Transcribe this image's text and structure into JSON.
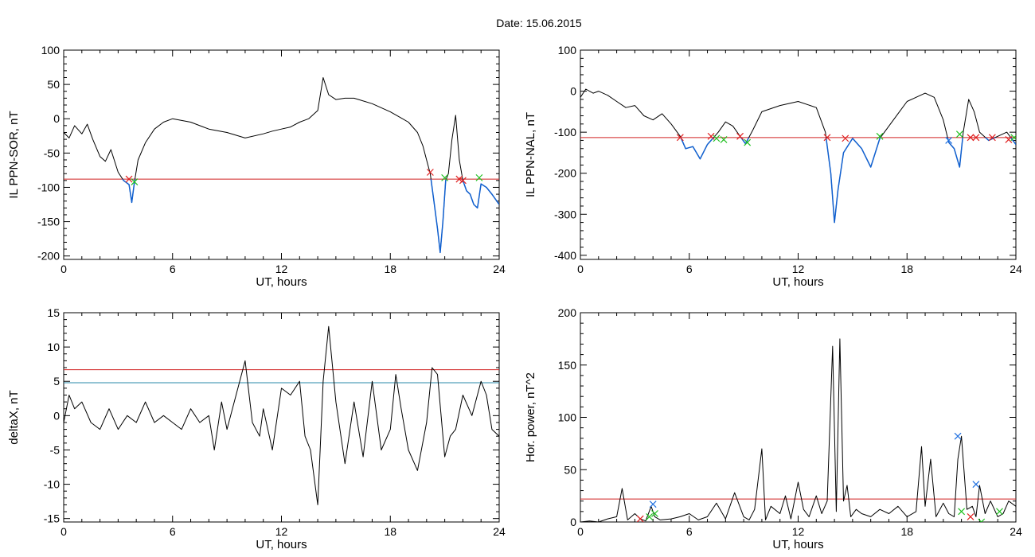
{
  "page": {
    "date_label": "Date:  15.06.2015"
  },
  "colors": {
    "trace": "#000000",
    "threshold_red": "#d02020",
    "threshold_teal": "#2a8aa8",
    "below_blue": "#1060d0",
    "marker_red": "#e02020",
    "marker_green": "#20c020",
    "marker_blue": "#2070e0"
  },
  "chart_data": [
    {
      "id": "sor",
      "type": "line",
      "xlabel": "UT, hours",
      "ylabel": "IL PPN-SOR, nT",
      "xlim": [
        0,
        24
      ],
      "ylim": [
        -205,
        100
      ],
      "xticks": [
        0,
        6,
        12,
        18,
        24
      ],
      "yticks": [
        100,
        50,
        0,
        -50,
        -100,
        -150,
        -200
      ],
      "thresholds": [
        {
          "y": -88,
          "color": "#d02020"
        }
      ],
      "below_color": "#1060d0",
      "series": [
        {
          "x": [
            0,
            0.3,
            0.6,
            1,
            1.3,
            1.6,
            2,
            2.3,
            2.6,
            3,
            3.3,
            3.6,
            3.75,
            3.9,
            4.1,
            4.5,
            5,
            5.5,
            6,
            7,
            8,
            9,
            10,
            11,
            11.5,
            12,
            12.5,
            13,
            13.5,
            14,
            14.3,
            14.6,
            15,
            15.5,
            16,
            17,
            18,
            19,
            19.5,
            19.8,
            20,
            20.2,
            20.4,
            20.6,
            20.75,
            20.9,
            21.05,
            21.2,
            21.4,
            21.6,
            21.8,
            22,
            22.2,
            22.4,
            22.6,
            22.8,
            23,
            23.3,
            23.6,
            24
          ],
          "y": [
            -20,
            -28,
            -10,
            -22,
            -8,
            -30,
            -55,
            -62,
            -45,
            -78,
            -90,
            -96,
            -122,
            -92,
            -60,
            -35,
            -15,
            -5,
            0,
            -5,
            -15,
            -20,
            -28,
            -22,
            -18,
            -15,
            -12,
            -5,
            0,
            12,
            60,
            35,
            28,
            30,
            30,
            22,
            10,
            -5,
            -20,
            -40,
            -60,
            -80,
            -120,
            -160,
            -195,
            -150,
            -90,
            -80,
            -30,
            5,
            -60,
            -90,
            -105,
            -110,
            -125,
            -130,
            -95,
            -100,
            -110,
            -125
          ]
        }
      ],
      "markers": [
        {
          "x": 3.6,
          "y": -88,
          "color": "#e02020"
        },
        {
          "x": 3.9,
          "y": -92,
          "color": "#20c020"
        },
        {
          "x": 20.2,
          "y": -78,
          "color": "#e02020"
        },
        {
          "x": 21.0,
          "y": -86,
          "color": "#20c020"
        },
        {
          "x": 21.8,
          "y": -88,
          "color": "#e02020"
        },
        {
          "x": 22.0,
          "y": -90,
          "color": "#e02020"
        },
        {
          "x": 22.9,
          "y": -86,
          "color": "#20c020"
        }
      ]
    },
    {
      "id": "nal",
      "type": "line",
      "xlabel": "UT, hours",
      "ylabel": "IL PPN-NAL, nT",
      "xlim": [
        0,
        24
      ],
      "ylim": [
        -410,
        100
      ],
      "xticks": [
        0,
        6,
        12,
        18,
        24
      ],
      "yticks": [
        100,
        0,
        -100,
        -200,
        -300,
        -400
      ],
      "thresholds": [
        {
          "y": -113,
          "color": "#d02020"
        }
      ],
      "below_color": "#1060d0",
      "series": [
        {
          "x": [
            0,
            0.3,
            0.7,
            1,
            1.5,
            2,
            2.5,
            3,
            3.5,
            4,
            4.5,
            5,
            5.5,
            5.8,
            6.2,
            6.6,
            7,
            7.3,
            7.6,
            8,
            8.4,
            8.8,
            9.1,
            9.5,
            10,
            11,
            12,
            13,
            13.5,
            13.8,
            14,
            14.2,
            14.5,
            15,
            15.5,
            16,
            16.5,
            17,
            17.5,
            18,
            18.5,
            19,
            19.5,
            20,
            20.3,
            20.6,
            20.9,
            21.1,
            21.4,
            21.7,
            22,
            22.5,
            23,
            23.5,
            24
          ],
          "y": [
            -15,
            5,
            -5,
            0,
            -10,
            -25,
            -40,
            -35,
            -60,
            -70,
            -55,
            -80,
            -110,
            -140,
            -135,
            -165,
            -130,
            -115,
            -100,
            -75,
            -85,
            -110,
            -128,
            -95,
            -50,
            -35,
            -25,
            -40,
            -100,
            -200,
            -320,
            -240,
            -150,
            -115,
            -140,
            -185,
            -115,
            -85,
            -55,
            -25,
            -15,
            -5,
            -15,
            -70,
            -125,
            -140,
            -185,
            -100,
            -20,
            -50,
            -100,
            -120,
            -110,
            -100,
            -130
          ]
        }
      ],
      "markers": [
        {
          "x": 5.5,
          "y": -113,
          "color": "#e02020"
        },
        {
          "x": 7.2,
          "y": -110,
          "color": "#e02020"
        },
        {
          "x": 7.5,
          "y": -115,
          "color": "#20c020"
        },
        {
          "x": 7.9,
          "y": -118,
          "color": "#20c020"
        },
        {
          "x": 8.8,
          "y": -110,
          "color": "#e02020"
        },
        {
          "x": 9.2,
          "y": -125,
          "color": "#20c020"
        },
        {
          "x": 13.6,
          "y": -113,
          "color": "#e02020"
        },
        {
          "x": 14.6,
          "y": -115,
          "color": "#e02020"
        },
        {
          "x": 16.5,
          "y": -110,
          "color": "#20c020"
        },
        {
          "x": 20.3,
          "y": -120,
          "color": "#2070e0"
        },
        {
          "x": 20.9,
          "y": -105,
          "color": "#20c020"
        },
        {
          "x": 21.5,
          "y": -113,
          "color": "#e02020"
        },
        {
          "x": 21.8,
          "y": -113,
          "color": "#e02020"
        },
        {
          "x": 22.7,
          "y": -113,
          "color": "#e02020"
        },
        {
          "x": 23.6,
          "y": -118,
          "color": "#e02020"
        },
        {
          "x": 23.9,
          "y": -113,
          "color": "#20c020"
        }
      ]
    },
    {
      "id": "deltax",
      "type": "line",
      "xlabel": "UT, hours",
      "ylabel": "deltaX, nT",
      "xlim": [
        0,
        24
      ],
      "ylim": [
        -15.5,
        15
      ],
      "xticks": [
        0,
        6,
        12,
        18,
        24
      ],
      "yticks": [
        15,
        10,
        5,
        0,
        -5,
        -10,
        -15
      ],
      "thresholds": [
        {
          "y": 6.7,
          "color": "#d02020"
        },
        {
          "y": 4.8,
          "color": "#2a8aa8"
        }
      ],
      "series": [
        {
          "x": [
            0,
            0.3,
            0.6,
            1,
            1.5,
            2,
            2.5,
            3,
            3.5,
            4,
            4.5,
            5,
            5.5,
            6,
            6.5,
            7,
            7.5,
            8,
            8.3,
            8.7,
            9,
            9.5,
            10,
            10.4,
            10.8,
            11,
            11.5,
            12,
            12.5,
            13,
            13.3,
            13.6,
            14,
            14.3,
            14.6,
            15,
            15.5,
            16,
            16.5,
            17,
            17.5,
            18,
            18.3,
            18.6,
            19,
            19.5,
            20,
            20.3,
            20.6,
            21,
            21.3,
            21.6,
            22,
            22.5,
            23,
            23.3,
            23.6,
            24
          ],
          "y": [
            -1,
            3,
            1,
            2,
            -1,
            -2,
            1,
            -2,
            0,
            -1,
            2,
            -1,
            0,
            -1,
            -2,
            1,
            -1,
            0,
            -5,
            2,
            -2,
            3,
            8,
            -1,
            -3,
            1,
            -5,
            4,
            3,
            5,
            -3,
            -5,
            -13,
            5,
            13,
            2,
            -7,
            2,
            -6,
            5,
            -5,
            -2,
            6,
            1,
            -5,
            -8,
            -1,
            7,
            6,
            -6,
            -3,
            -2,
            3,
            0,
            5,
            3,
            -2,
            -3
          ]
        }
      ],
      "markers": []
    },
    {
      "id": "power",
      "type": "line",
      "xlabel": "UT, hours",
      "ylabel": "Hor. power, nT^2",
      "xlim": [
        0,
        24
      ],
      "ylim": [
        0,
        200
      ],
      "xticks": [
        0,
        6,
        12,
        18,
        24
      ],
      "yticks": [
        200,
        150,
        100,
        50,
        0
      ],
      "thresholds": [
        {
          "y": 22,
          "color": "#d02020"
        }
      ],
      "series": [
        {
          "x": [
            0,
            0.5,
            1,
            1.5,
            2,
            2.3,
            2.6,
            3,
            3.3,
            3.6,
            3.9,
            4.1,
            4.4,
            5,
            5.5,
            6,
            6.5,
            7,
            7.5,
            8,
            8.5,
            9,
            9.3,
            9.6,
            10,
            10.2,
            10.5,
            11,
            11.3,
            11.6,
            12,
            12.3,
            12.6,
            13,
            13.3,
            13.6,
            13.9,
            14.1,
            14.3,
            14.5,
            14.7,
            14.9,
            15.2,
            15.5,
            16,
            16.5,
            17,
            17.5,
            18,
            18.5,
            18.8,
            19,
            19.3,
            19.6,
            20,
            20.3,
            20.6,
            20.8,
            21,
            21.3,
            21.6,
            21.8,
            22,
            22.3,
            22.6,
            23,
            23.3,
            23.6,
            24
          ],
          "y": [
            0,
            1,
            0,
            3,
            5,
            32,
            2,
            8,
            3,
            1,
            15,
            5,
            2,
            3,
            5,
            8,
            2,
            5,
            18,
            3,
            28,
            5,
            2,
            12,
            70,
            2,
            15,
            8,
            25,
            3,
            38,
            12,
            5,
            25,
            8,
            20,
            168,
            10,
            175,
            20,
            35,
            5,
            12,
            8,
            5,
            12,
            8,
            15,
            5,
            10,
            72,
            15,
            60,
            5,
            18,
            8,
            5,
            60,
            82,
            12,
            15,
            5,
            35,
            8,
            20,
            5,
            8,
            20,
            15
          ]
        }
      ],
      "markers": [
        {
          "x": 3.3,
          "y": 3,
          "color": "#e02020"
        },
        {
          "x": 3.8,
          "y": 5,
          "color": "#20c020"
        },
        {
          "x": 4.0,
          "y": 17,
          "color": "#2070e0"
        },
        {
          "x": 4.1,
          "y": 8,
          "color": "#20c020"
        },
        {
          "x": 20.8,
          "y": 82,
          "color": "#2070e0"
        },
        {
          "x": 21.0,
          "y": 10,
          "color": "#20c020"
        },
        {
          "x": 21.5,
          "y": 5,
          "color": "#e02020"
        },
        {
          "x": 21.8,
          "y": 36,
          "color": "#2070e0"
        },
        {
          "x": 22.1,
          "y": 0,
          "color": "#20c020"
        },
        {
          "x": 23.1,
          "y": 10,
          "color": "#20c020"
        }
      ]
    }
  ]
}
